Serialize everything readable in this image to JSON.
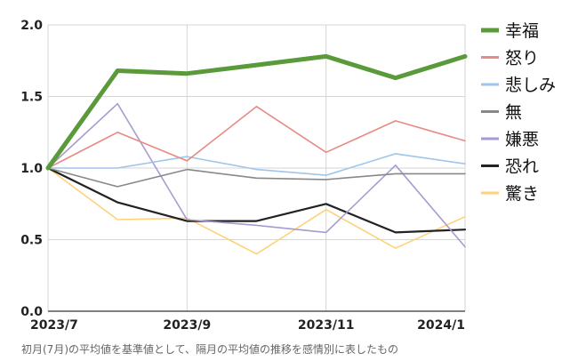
{
  "caption": "初月(7月)の平均値を基準値として、隔月の平均値の推移を感情別に表したもの",
  "chart_data": {
    "type": "line",
    "x_tick_labels": [
      "2023/7",
      "2023/9",
      "2023/11",
      "2024/1"
    ],
    "x": [
      "2023/7",
      "2023/8",
      "2023/9",
      "2023/10",
      "2023/11",
      "2023/12",
      "2024/1"
    ],
    "ylim": [
      0,
      2
    ],
    "y_ticks": [
      "0.0",
      "0.5",
      "1.0",
      "1.5",
      "2.0"
    ],
    "grid": true,
    "legend_position": "right",
    "series": [
      {
        "name": "幸福",
        "color": "#5a9a3a",
        "values": [
          1.0,
          1.68,
          1.66,
          1.72,
          1.78,
          1.63,
          1.78
        ]
      },
      {
        "name": "怒り",
        "color": "#e88a84",
        "values": [
          1.0,
          1.25,
          1.05,
          1.43,
          1.11,
          1.33,
          1.19
        ]
      },
      {
        "name": "悲しみ",
        "color": "#9ec5ea",
        "values": [
          1.0,
          1.0,
          1.08,
          0.99,
          0.95,
          1.1,
          1.03
        ]
      },
      {
        "name": "無",
        "color": "#888888",
        "values": [
          1.0,
          0.87,
          0.99,
          0.93,
          0.92,
          0.96,
          0.96
        ]
      },
      {
        "name": "嫌悪",
        "color": "#a99bd1",
        "values": [
          1.0,
          1.45,
          0.64,
          0.6,
          0.55,
          1.02,
          0.45
        ]
      },
      {
        "name": "恐れ",
        "color": "#222222",
        "values": [
          1.0,
          0.76,
          0.63,
          0.63,
          0.75,
          0.55,
          0.57
        ]
      },
      {
        "name": "驚き",
        "color": "#ffd27a",
        "values": [
          1.0,
          0.64,
          0.65,
          0.4,
          0.71,
          0.44,
          0.66
        ]
      }
    ]
  }
}
